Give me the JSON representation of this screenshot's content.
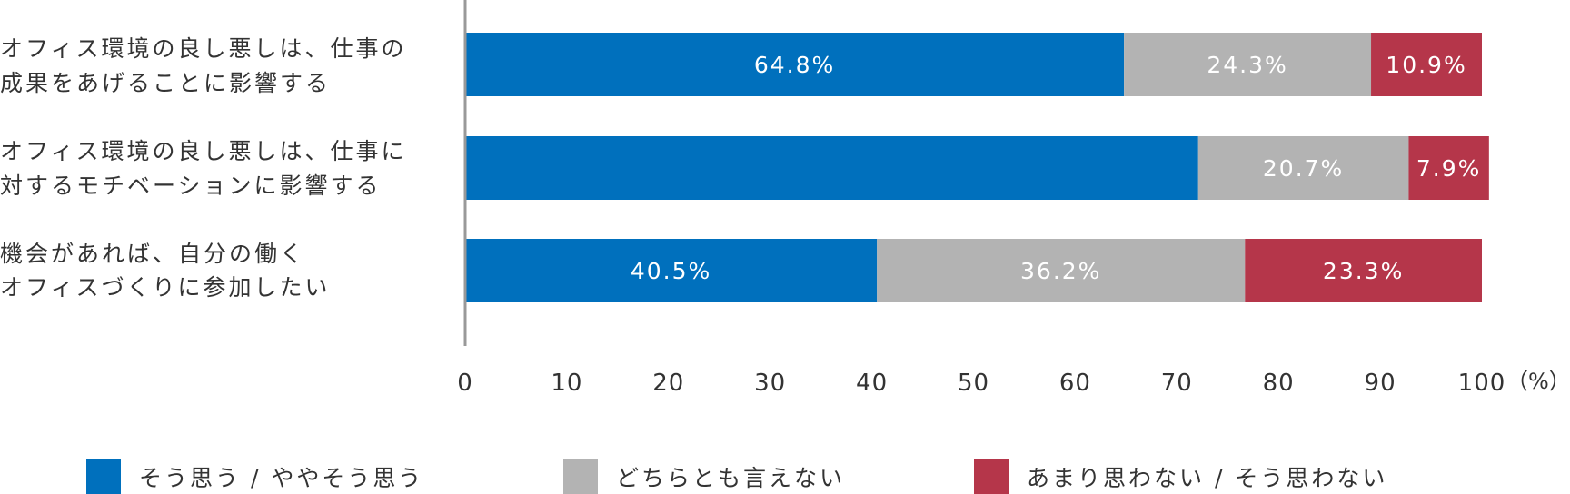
{
  "chart_data": {
    "type": "bar",
    "orientation": "horizontal",
    "stacked": true,
    "categories": [
      [
        "オフィス環境の良し悪しは、仕事の",
        "成果をあげることに影響する"
      ],
      [
        "オフィス環境の良し悪しは、仕事に",
        "対するモチベーションに影響する"
      ],
      [
        "機会があれば、自分の働く",
        "オフィスづくりに参加したい"
      ]
    ],
    "series": [
      {
        "name": "そう思う / ややそう思う",
        "color": "#0070bd",
        "values": [
          64.8,
          72.1,
          40.5
        ],
        "labels": [
          "64.8%",
          "",
          "40.5%"
        ]
      },
      {
        "name": "どちらとも言えない",
        "color": "#b3b3b3",
        "values": [
          24.3,
          20.7,
          36.2
        ],
        "labels": [
          "24.3%",
          "20.7%",
          "36.2%"
        ]
      },
      {
        "name": "あまり思わない / そう思わない",
        "color": "#b5364a",
        "values": [
          10.9,
          7.9,
          23.3
        ],
        "labels": [
          "10.9%",
          "7.9%",
          "23.3%"
        ]
      }
    ],
    "xlim": [
      0,
      100
    ],
    "xticks": [
      "0",
      "10",
      "20",
      "30",
      "40",
      "50",
      "60",
      "70",
      "80",
      "90",
      "100"
    ],
    "xunit": "（%）",
    "grid": false,
    "legend_position": "bottom"
  }
}
